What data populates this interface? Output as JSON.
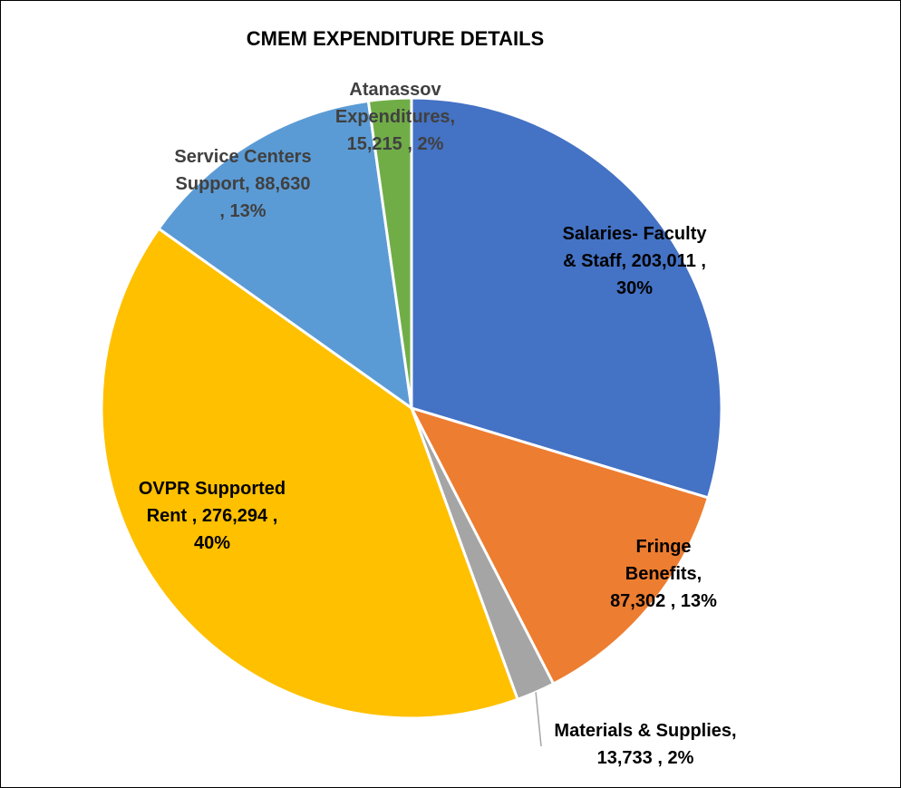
{
  "chart_data": {
    "type": "pie",
    "title": "CMEM EXPENDITURE DETAILS",
    "slices": [
      {
        "name": "Salaries- Faculty & Staff",
        "value": 203011,
        "percent": 30,
        "color": "#4472c4",
        "label_lines": [
          "Salaries- Faculty",
          "& Staff,  203,011 ,",
          "30%"
        ],
        "label_color": "#000000"
      },
      {
        "name": "Fringe Benefits",
        "value": 87302,
        "percent": 13,
        "color": "#ed7d31",
        "label_lines": [
          "Fringe",
          "Benefits,",
          "87,302 , 13%"
        ],
        "label_color": "#000000"
      },
      {
        "name": "Materials & Supplies",
        "value": 13733,
        "percent": 2,
        "color": "#a5a5a5",
        "label_lines": [
          "Materials & Supplies,",
          "13,733 , 2%"
        ],
        "label_color": "#000000"
      },
      {
        "name": "OVPR Supported Rent",
        "value": 276294,
        "percent": 40,
        "color": "#ffc000",
        "label_lines": [
          "OVPR Supported",
          "Rent ,  276,294 ,",
          "40%"
        ],
        "label_color": "#000000"
      },
      {
        "name": "Service Centers Support",
        "value": 88630,
        "percent": 13,
        "color": "#5b9bd5",
        "label_lines": [
          "Service Centers",
          "Support,  88,630",
          ", 13%"
        ],
        "label_color": "#404040"
      },
      {
        "name": "Atanassov Expenditures",
        "value": 15215,
        "percent": 2,
        "color": "#70ad47",
        "label_lines": [
          "Atanassov",
          "Expenditures,",
          "15,215 , 2%"
        ],
        "label_color": "#404040"
      }
    ],
    "start_angle_deg": 0,
    "direction": "clockwise",
    "legend": "none"
  }
}
